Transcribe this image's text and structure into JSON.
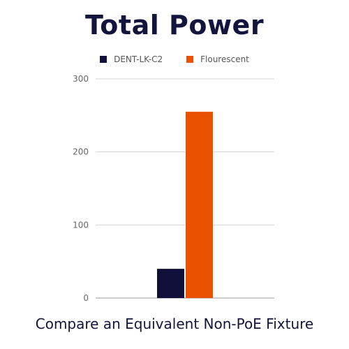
{
  "chart_data": {
    "type": "bar",
    "title": "Total Power",
    "subtitle": "",
    "xlabel": "",
    "ylabel": "",
    "categories": [
      ""
    ],
    "ylim": [
      0,
      300
    ],
    "yticks": [
      0,
      100,
      200,
      300
    ],
    "grid": true,
    "legend_position": "top",
    "series": [
      {
        "name": "DENT-LK-C2",
        "color": "#0f0f3a",
        "values": [
          40
        ]
      },
      {
        "name": "Flourescent",
        "color": "#eb5200",
        "values": [
          255
        ]
      }
    ]
  },
  "caption": "Compare an Equivalent Non-PoE Fixture"
}
